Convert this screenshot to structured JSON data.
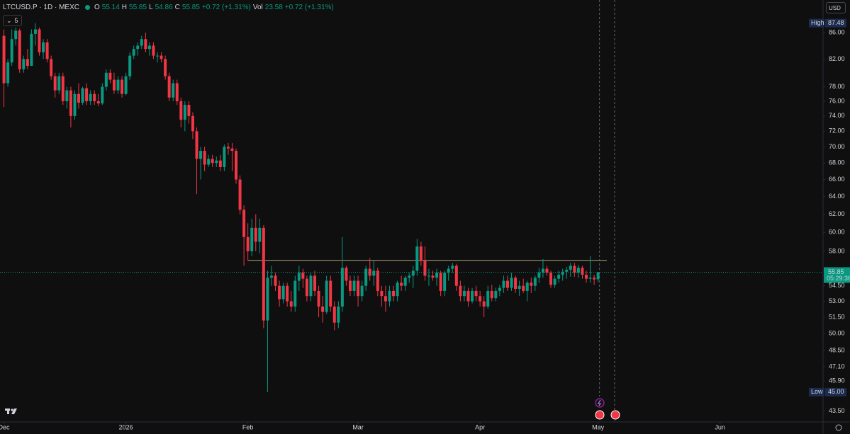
{
  "header": {
    "symbol": "LTCUSD.P · 1D · MEXC",
    "ohlc": [
      {
        "label": "O",
        "value": "55.14"
      },
      {
        "label": "H",
        "value": "55.85"
      },
      {
        "label": "L",
        "value": "54.86"
      },
      {
        "label": "C",
        "value": "55.85"
      }
    ],
    "change": "+0.72 (+1.31%)",
    "vol_label": "Vol",
    "vol": "23.58",
    "vol_change": "+0.72 (+1.31%)",
    "indicator_count": "5",
    "currency": "USD"
  },
  "chart_data": {
    "type": "candlestick",
    "log_scale": true,
    "grid": false,
    "up_color": "#089981",
    "down_color": "#f23645",
    "xlim": [
      -1,
      208
    ],
    "xticks": [
      {
        "value": 0,
        "label": "Dec"
      },
      {
        "value": 31,
        "label": "2026"
      },
      {
        "value": 62,
        "label": "Feb"
      },
      {
        "value": 90,
        "label": "Mar"
      },
      {
        "value": 121,
        "label": "Apr"
      },
      {
        "value": 151,
        "label": "May"
      },
      {
        "value": 182,
        "label": "Jun"
      }
    ],
    "ylim": [
      42.7,
      91.2
    ],
    "yticks": [
      {
        "value": 86,
        "label": "86.00"
      },
      {
        "value": 82,
        "label": "82.00"
      },
      {
        "value": 78,
        "label": "78.00"
      },
      {
        "value": 76,
        "label": "76.00"
      },
      {
        "value": 74,
        "label": "74.00"
      },
      {
        "value": 72,
        "label": "72.00"
      },
      {
        "value": 70,
        "label": "70.00"
      },
      {
        "value": 68,
        "label": "68.00"
      },
      {
        "value": 66,
        "label": "66.00"
      },
      {
        "value": 64,
        "label": "64.00"
      },
      {
        "value": 62,
        "label": "62.00"
      },
      {
        "value": 60,
        "label": "60.00"
      },
      {
        "value": 58,
        "label": "58.00"
      },
      {
        "value": 54.5,
        "label": "54.50"
      },
      {
        "value": 53,
        "label": "53.00"
      },
      {
        "value": 51.5,
        "label": "51.50"
      },
      {
        "value": 50,
        "label": "50.00"
      },
      {
        "value": 48.5,
        "label": "48.50"
      },
      {
        "value": 47.1,
        "label": "47.10"
      },
      {
        "value": 45.9,
        "label": "45.90"
      },
      {
        "value": 43.5,
        "label": "43.50"
      }
    ],
    "open": [
      85.5,
      78.5,
      81.5,
      85,
      86.3,
      80.5,
      82,
      81,
      85.8,
      86.5,
      83,
      84.5,
      82,
      79.5,
      77.5,
      79.5,
      76,
      77.5,
      74,
      77,
      75.8,
      77.8,
      76,
      77,
      76,
      75.7,
      78,
      80,
      79,
      77.5,
      79,
      77,
      79.5,
      82.5,
      83.5,
      84,
      85,
      83.5,
      84,
      82.5,
      82.5,
      82,
      79.5,
      76.5,
      78.5,
      76,
      73.5,
      75.5,
      74,
      72,
      68.5,
      69.5,
      67.8,
      68.5,
      68,
      68.3,
      67.5,
      70,
      69.8,
      69.5,
      66,
      62.5,
      59.5,
      58,
      60.5,
      59,
      60.5,
      51.2,
      55.3,
      55.5,
      54.5,
      53.2,
      54.5,
      53,
      52.5,
      55,
      55.8,
      55.2,
      53.5,
      55.5,
      54,
      52.5,
      52,
      55,
      52.5,
      51,
      52.5,
      56.3,
      55,
      54,
      55,
      53.5,
      54.5,
      56.2,
      55.5,
      56,
      54,
      53.5,
      53,
      54,
      53.5,
      54.8,
      54.5,
      55.3,
      55.5,
      56,
      58.5,
      57,
      55.5,
      55.5,
      55.3,
      55.8,
      54,
      55.8,
      56.2,
      56.5,
      54.5,
      53.5,
      54,
      53,
      54,
      53.5,
      53,
      52.5,
      54,
      53.3,
      54,
      54.3,
      55,
      54.3,
      55.3,
      54.2,
      54.5,
      54,
      54.8,
      54.5,
      55.3,
      55.8,
      56.2,
      55.8,
      54.6,
      55.2,
      55.6,
      55.9,
      56.1,
      56.5,
      55.8,
      56.3,
      55.6,
      55.2,
      55.3,
      55.14
    ],
    "high": [
      86.5,
      82,
      86.5,
      86.8,
      86.6,
      82.5,
      83.5,
      86.5,
      87.48,
      86.8,
      85,
      85,
      82.5,
      80,
      80,
      80,
      78,
      78,
      77.5,
      78.5,
      78,
      78.5,
      77.5,
      77.5,
      77,
      78.5,
      80.5,
      80.5,
      80,
      79.5,
      79.5,
      80,
      83,
      84,
      84.5,
      85.5,
      86,
      84.5,
      84.5,
      83,
      83,
      82.5,
      80,
      79,
      79,
      76.5,
      76,
      76,
      74.5,
      72.5,
      70,
      70,
      69,
      69,
      68.8,
      69,
      70.3,
      70.5,
      70.5,
      69.8,
      66.5,
      63,
      61,
      61.5,
      62,
      61.5,
      60.8,
      56,
      56.5,
      55.8,
      55,
      54.8,
      54.8,
      54,
      55.5,
      56.5,
      56.2,
      55.5,
      55.8,
      56,
      54.5,
      53.5,
      55.5,
      55.5,
      53,
      53,
      59.5,
      56.5,
      55.5,
      55.5,
      55.5,
      55,
      56.5,
      57.3,
      57,
      56.3,
      54.5,
      54.5,
      54.5,
      54.5,
      55,
      55.5,
      55.5,
      55.8,
      56.5,
      59.3,
      59,
      58.5,
      56.2,
      56,
      56.2,
      56,
      56,
      56.5,
      56.8,
      56.7,
      55,
      54.5,
      54.3,
      54.3,
      54.5,
      54,
      53.5,
      54.5,
      54.6,
      54.3,
      54.6,
      55.5,
      55.5,
      55.8,
      55.5,
      55,
      55.2,
      55,
      55.3,
      55.5,
      56.3,
      57.2,
      56.5,
      56,
      55.5,
      56,
      56.2,
      56.4,
      56.8,
      56.8,
      56.6,
      56.5,
      56,
      57.5,
      55.6,
      55.85
    ],
    "low": [
      75.2,
      78,
      81,
      84,
      80,
      80,
      80.5,
      81,
      84,
      82.5,
      82,
      81.5,
      79,
      76.5,
      77,
      75.5,
      75,
      72.5,
      73.5,
      75,
      75.5,
      75.5,
      75.5,
      75.5,
      75.3,
      75.5,
      77.5,
      78.5,
      77,
      77,
      76.5,
      76.8,
      79,
      82,
      82.5,
      83.5,
      83,
      82.5,
      82,
      81.5,
      81.5,
      79,
      76,
      76,
      75.5,
      72.5,
      72,
      73,
      71,
      64.3,
      66,
      67,
      67.5,
      67.5,
      67.5,
      67,
      67,
      69,
      67,
      65.5,
      62,
      56.5,
      57,
      57.5,
      58,
      57.8,
      50.5,
      45,
      54.5,
      54,
      52.5,
      52.8,
      52.5,
      52,
      52,
      54,
      54.3,
      53,
      53,
      53.5,
      51.5,
      51,
      51.8,
      52,
      50.3,
      50.5,
      52,
      54.5,
      53.5,
      53.5,
      52.5,
      53,
      54,
      55,
      54.5,
      53.5,
      52.5,
      52,
      52.5,
      53,
      53,
      54,
      54,
      54.8,
      54.3,
      55.5,
      56.5,
      55,
      54.5,
      55,
      54.5,
      53.5,
      53.5,
      55,
      55.8,
      54,
      53,
      53,
      52.5,
      52.8,
      53,
      52.5,
      51.5,
      52.3,
      53,
      53,
      53.5,
      53.8,
      54,
      54,
      53.8,
      53.5,
      53.8,
      53,
      53.8,
      54,
      54.8,
      55.3,
      55.5,
      54.3,
      54.3,
      54.8,
      55,
      55.2,
      55.4,
      55.4,
      55.3,
      55.2,
      54.8,
      54.8,
      54.6,
      54.86
    ],
    "close": [
      78.5,
      81.5,
      85,
      86.3,
      80.5,
      82,
      81,
      85.8,
      86.5,
      83,
      84.5,
      82,
      79.5,
      77.5,
      79.5,
      76,
      77.5,
      74,
      77,
      75.8,
      77.8,
      76,
      77,
      76,
      75.7,
      78,
      80,
      79,
      77.5,
      79,
      77,
      79.5,
      82.5,
      83.5,
      84,
      85,
      83.5,
      84,
      82.5,
      82.5,
      82,
      79.5,
      76.5,
      78.5,
      76,
      73.5,
      75.5,
      74,
      72,
      68.5,
      69.5,
      67.8,
      68.5,
      68,
      68.3,
      67.5,
      70,
      69.8,
      69.5,
      66,
      62.5,
      59.5,
      58,
      60.5,
      59,
      60.5,
      51.2,
      55.3,
      55.5,
      54.5,
      53.2,
      54.5,
      53,
      52.5,
      55,
      55.8,
      55.2,
      53.5,
      55.5,
      54,
      52.5,
      52,
      55,
      52.5,
      51,
      52.5,
      56.3,
      55,
      54,
      55,
      53.5,
      54.5,
      56.2,
      55.5,
      56,
      54,
      53.5,
      53,
      54,
      53.5,
      54.8,
      54.5,
      55.3,
      55.5,
      56,
      58.5,
      57,
      55.5,
      55.5,
      55.3,
      55.8,
      54,
      55.8,
      56.2,
      56.5,
      54.5,
      53.5,
      54,
      53,
      54,
      53.5,
      53,
      52.5,
      54,
      53.3,
      54,
      54.3,
      55,
      54.3,
      55.3,
      54.2,
      54.5,
      54,
      54.8,
      54.5,
      55.3,
      55.8,
      56.2,
      55.8,
      54.6,
      55.2,
      55.6,
      55.9,
      56.1,
      56.5,
      55.8,
      56.3,
      55.6,
      55.2,
      55.3,
      55.13,
      55.85
    ],
    "level_line": 57.05,
    "high_marker": {
      "text": "High",
      "value": 87.48,
      "label": "87.48"
    },
    "low_marker": {
      "text": "Low",
      "value": 45,
      "label": "45.00"
    },
    "last_price": {
      "value": 55.85,
      "label": "55.85",
      "countdown": "05:29:36"
    }
  }
}
